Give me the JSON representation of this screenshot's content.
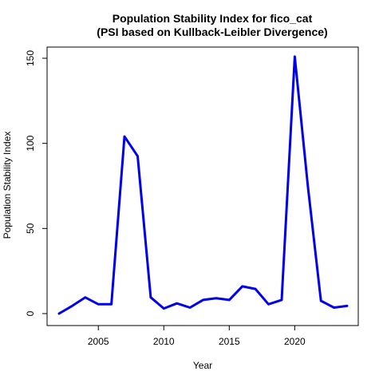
{
  "chart_data": {
    "type": "line",
    "title": "Population Stability Index for fico_cat",
    "subtitle": "(PSI based on Kullback-Leibler Divergence)",
    "xlabel": "Year",
    "ylabel": "Population Stability Index",
    "xlim": [
      2002,
      2024
    ],
    "ylim": [
      0,
      150
    ],
    "x_ticks": [
      2005,
      2010,
      2015,
      2020
    ],
    "y_ticks": [
      0,
      50,
      100,
      150
    ],
    "grid": false,
    "legend": "none",
    "line_color": "#0000ee",
    "series": [
      {
        "x": [
          2002,
          2003,
          2004,
          2005,
          2006,
          2007,
          2008,
          2009,
          2010,
          2011,
          2012,
          2013,
          2014,
          2015,
          2016,
          2017,
          2018,
          2019,
          2020,
          2021,
          2022,
          2023,
          2024
        ],
        "values": [
          0,
          4.5,
          9.5,
          5.5,
          5.5,
          104,
          92.5,
          9.5,
          3,
          6,
          3.5,
          8,
          9,
          8,
          16,
          14.5,
          5.5,
          8,
          151,
          75,
          7.5,
          3.5,
          4.5
        ]
      }
    ]
  }
}
